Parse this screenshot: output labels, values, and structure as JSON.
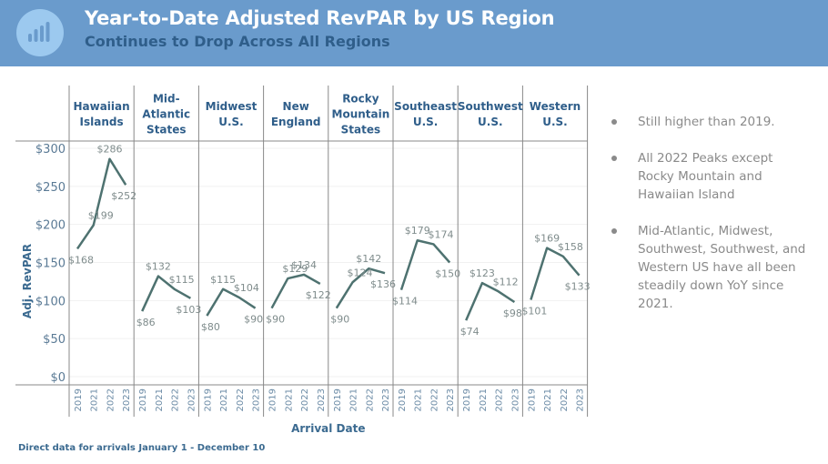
{
  "header": {
    "icon": "bar-chart-icon",
    "title": "Year-to-Date Adjusted RevPAR by US Region",
    "subtitle": "Continues to  Drop Across All Regions"
  },
  "notes": [
    "Still higher than 2019.",
    "All 2022 Peaks except Rocky Mountain and Hawaiian Island",
    "Mid-Atlantic, Midwest, Southwest, Southwest, and Western US have all been steadily down YoY since 2021."
  ],
  "footnote": "Direct data for arrivals January 1 - December 10",
  "colors": {
    "banner": "#6a9bcc",
    "line": "#4e7270",
    "header_text": "#2f5e8a",
    "label_text": "#7f8c8c"
  },
  "chart_data": {
    "type": "line",
    "title": "Year-to-Date Adjusted RevPAR by US Region",
    "xlabel": "Arrival Date",
    "ylabel": "Adj. RevPAR",
    "ylim": [
      0,
      300
    ],
    "yticks": [
      0,
      50,
      100,
      150,
      200,
      250,
      300
    ],
    "ytick_labels": [
      "$0",
      "$50",
      "$100",
      "$150",
      "$200",
      "$250",
      "$300"
    ],
    "categories": [
      "2019",
      "2021",
      "2022",
      "2023"
    ],
    "grid": true,
    "panels": [
      {
        "name": "Hawaiian Islands",
        "header_lines": [
          "Hawaiian",
          "Islands"
        ],
        "values": [
          168,
          199,
          286,
          252
        ],
        "labels": [
          "$168",
          "$199",
          "$286",
          "$252"
        ]
      },
      {
        "name": "Mid-Atlantic States",
        "header_lines": [
          "Mid-",
          "Atlantic",
          "States"
        ],
        "values": [
          86,
          132,
          115,
          103
        ],
        "labels": [
          "$86",
          "$132",
          "$115",
          "$103"
        ]
      },
      {
        "name": "Midwest U.S.",
        "header_lines": [
          "Midwest",
          "U.S."
        ],
        "values": [
          80,
          115,
          104,
          90
        ],
        "labels": [
          "$80",
          "$115",
          "$104",
          "$90"
        ]
      },
      {
        "name": "New England",
        "header_lines": [
          "New",
          "England"
        ],
        "values": [
          90,
          129,
          134,
          122
        ],
        "labels": [
          "$90",
          "$129",
          "$134",
          "$122"
        ]
      },
      {
        "name": "Rocky Mountain States",
        "header_lines": [
          "Rocky",
          "Mountain",
          "States"
        ],
        "values": [
          90,
          124,
          142,
          136
        ],
        "labels": [
          "$90",
          "$124",
          "$142",
          "$136"
        ]
      },
      {
        "name": "Southeast U.S.",
        "header_lines": [
          "Southeast",
          "U.S."
        ],
        "values": [
          114,
          179,
          174,
          150
        ],
        "labels": [
          "$114",
          "$179",
          "$174",
          "$150"
        ]
      },
      {
        "name": "Southwest U.S.",
        "header_lines": [
          "Southwest",
          "U.S."
        ],
        "values": [
          74,
          123,
          112,
          98
        ],
        "labels": [
          "$74",
          "$123",
          "$112",
          "$98"
        ]
      },
      {
        "name": "Western U.S.",
        "header_lines": [
          "Western",
          "U.S."
        ],
        "values": [
          101,
          169,
          158,
          133
        ],
        "labels": [
          "$101",
          "$169",
          "$158",
          "$133"
        ]
      }
    ]
  }
}
